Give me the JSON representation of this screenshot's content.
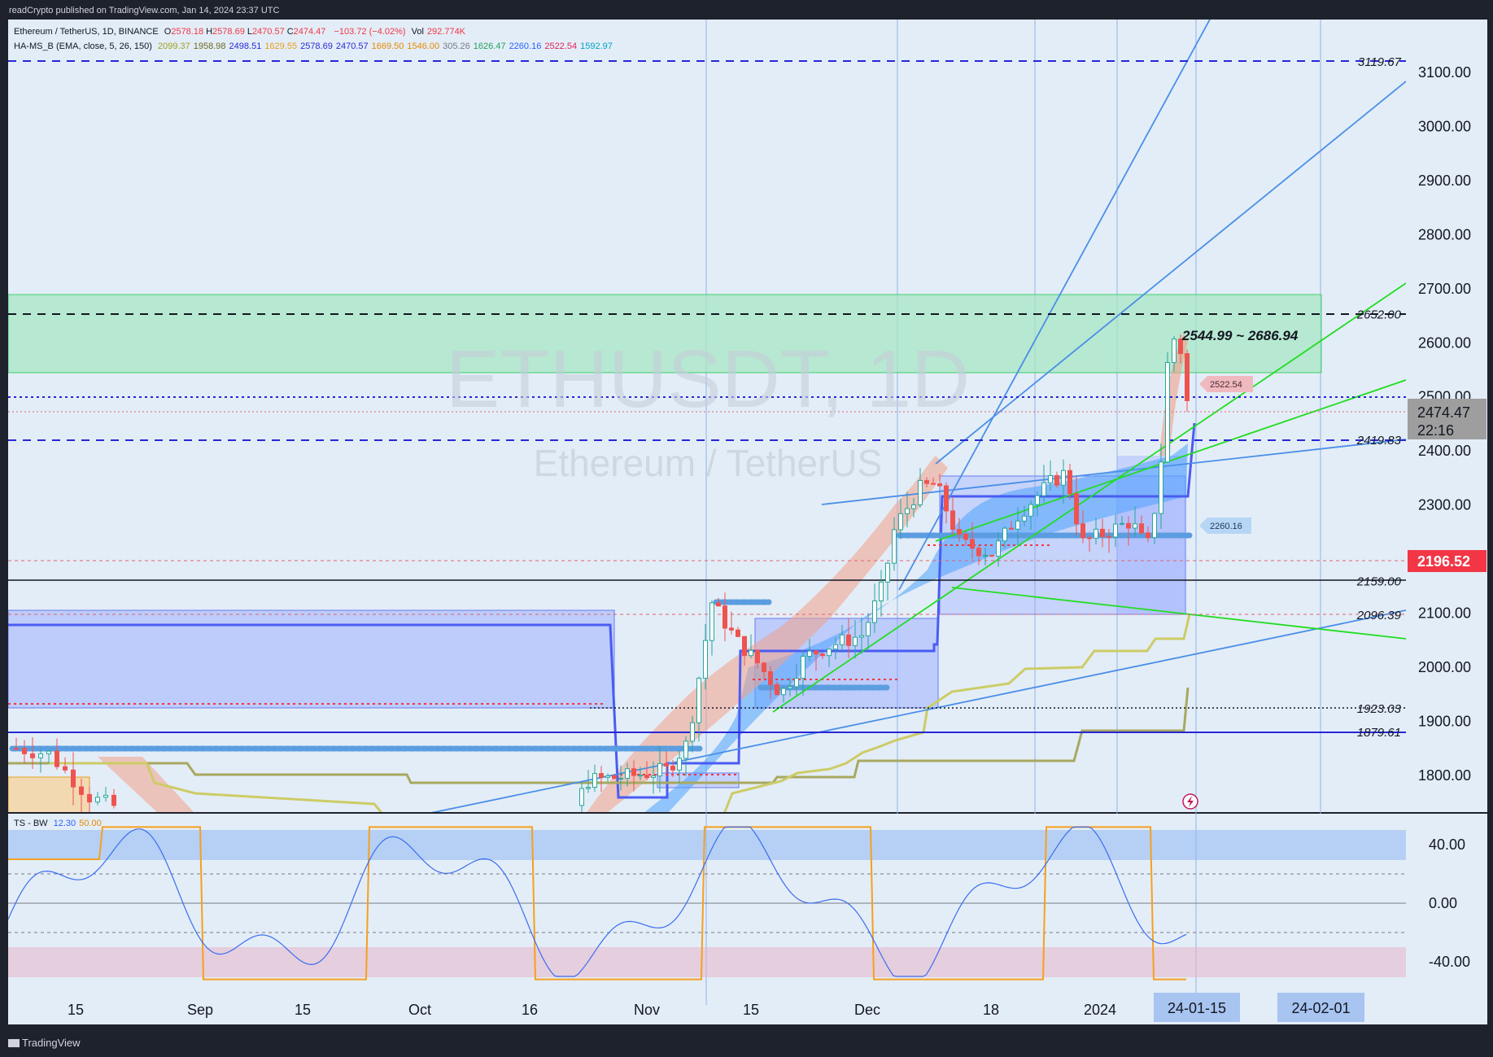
{
  "header": {
    "published": "readCrypto published on TradingView.com, Jan 14, 2024 23:37 UTC",
    "footer_logo": "TradingView"
  },
  "legend": {
    "symbol": "Ethereum / TetherUS, 1D, BINANCE",
    "ohlc": [
      {
        "k": "O",
        "v": "2578.18"
      },
      {
        "k": "H",
        "v": "2578.69"
      },
      {
        "k": "L",
        "v": "2470.57"
      },
      {
        "k": "C",
        "v": "2474.47"
      }
    ],
    "change": "−103.72 (−4.02%)",
    "vol_label": "Vol",
    "vol_value": "292.774K",
    "indicator_name": "HA-MS_B (EMA, close, 5, 26, 150)",
    "indicator_values": [
      {
        "v": "2099.37",
        "color": "#a0a020"
      },
      {
        "v": "1958.98",
        "color": "#6b6b1e"
      },
      {
        "v": "2498.51",
        "color": "#2929d6"
      },
      {
        "v": "1629.55",
        "color": "#e6a020"
      },
      {
        "v": "2578.69",
        "color": "#2929d6"
      },
      {
        "v": "2470.57",
        "color": "#2929d6"
      },
      {
        "v": "1669.50",
        "color": "#e68a00"
      },
      {
        "v": "1546.00",
        "color": "#e68a00"
      },
      {
        "v": "305.26",
        "color": "#787b86"
      },
      {
        "v": "1626.47",
        "color": "#22a35a"
      },
      {
        "v": "2260.16",
        "color": "#2962ff"
      },
      {
        "v": "2522.54",
        "color": "#e0245e"
      },
      {
        "v": "1592.97",
        "color": "#00a3c4"
      }
    ],
    "osc_name": "TS - BW",
    "osc_values": [
      {
        "v": "12.30",
        "color": "#2962ff"
      },
      {
        "v": "50.00",
        "color": "#e68a00"
      }
    ]
  },
  "watermark": {
    "symbol": "ETHUSDT, 1D",
    "name": "Ethereum / TetherUS"
  },
  "annotations": {
    "zone_label": "2544.99 ~ 2686.94",
    "tag_2522": "2522.54",
    "tag_2260": "2260.16"
  },
  "colors": {
    "chart_bg": "#e3edf7",
    "price_axis_bg": "#e3edf7",
    "up_candle": "#26a69a",
    "down_candle": "#ef5350",
    "price_tag_current": "#9e9e9e",
    "price_tag_red": "#f23645",
    "supply_zone": "#a8e6c4"
  },
  "chart_data": {
    "type": "candlestick",
    "symbol": "ETHUSDT",
    "interval": "1D",
    "y_axis_ticks": [
      "3100.00",
      "3000.00",
      "2900.00",
      "2800.00",
      "2700.00",
      "2600.00",
      "2500.00",
      "2400.00",
      "2300.00",
      "2200.00",
      "2100.00",
      "2000.00",
      "1900.00",
      "1800.00"
    ],
    "ylim": [
      1720,
      3200
    ],
    "x_axis_ticks": [
      "15",
      "Sep",
      "15",
      "Oct",
      "16",
      "Nov",
      "15",
      "Dec",
      "18",
      "2024"
    ],
    "x_axis_highlight": [
      "24-01-15",
      "24-02-01"
    ],
    "current_price": "2474.47",
    "countdown": "22:16",
    "red_tag_price": "2196.52",
    "horizontal_levels": [
      {
        "value": 3119.67,
        "label": "3119.67",
        "style": "blue-dashed"
      },
      {
        "value": 2652.0,
        "label": "2652.00",
        "style": "black-dashed"
      },
      {
        "value": 2419.83,
        "label": "2419.83",
        "style": "blue-dashed"
      },
      {
        "value": 2159.0,
        "label": "2159.00",
        "style": "black-solid"
      },
      {
        "value": 2096.39,
        "label": "2096.39",
        "style": "red-dotted"
      },
      {
        "value": 1923.03,
        "label": "1923.03",
        "style": "black-dotted"
      },
      {
        "value": 1879.61,
        "label": "1879.61",
        "style": "blue-solid"
      }
    ],
    "supply_zone": {
      "low": 2544.99,
      "high": 2686.94
    },
    "candles_recent": [
      {
        "date": "Nov 10",
        "o": 2060,
        "h": 2130,
        "l": 2000,
        "c": 2120
      },
      {
        "date": "Nov 20",
        "o": 1940,
        "h": 2010,
        "l": 1930,
        "c": 1990
      },
      {
        "date": "Dec 06",
        "o": 2270,
        "h": 2390,
        "l": 2240,
        "c": 2350
      },
      {
        "date": "Dec 20",
        "o": 2200,
        "h": 2290,
        "l": 2150,
        "c": 2250
      },
      {
        "date": "Jan 01",
        "o": 2280,
        "h": 2420,
        "l": 2270,
        "c": 2350
      },
      {
        "date": "Jan 10",
        "o": 2580,
        "h": 2720,
        "l": 2450,
        "c": 2610
      },
      {
        "date": "Jan 14",
        "o": 2578.18,
        "h": 2578.69,
        "l": 2470.57,
        "c": 2474.47
      }
    ],
    "oscillator": {
      "name": "TS - BW",
      "y_axis_ticks": [
        "40.00",
        "0.00",
        "-40.00"
      ],
      "ylim": [
        -55,
        55
      ],
      "values": {
        "fast": 12.3,
        "slow": 50.0
      }
    }
  }
}
